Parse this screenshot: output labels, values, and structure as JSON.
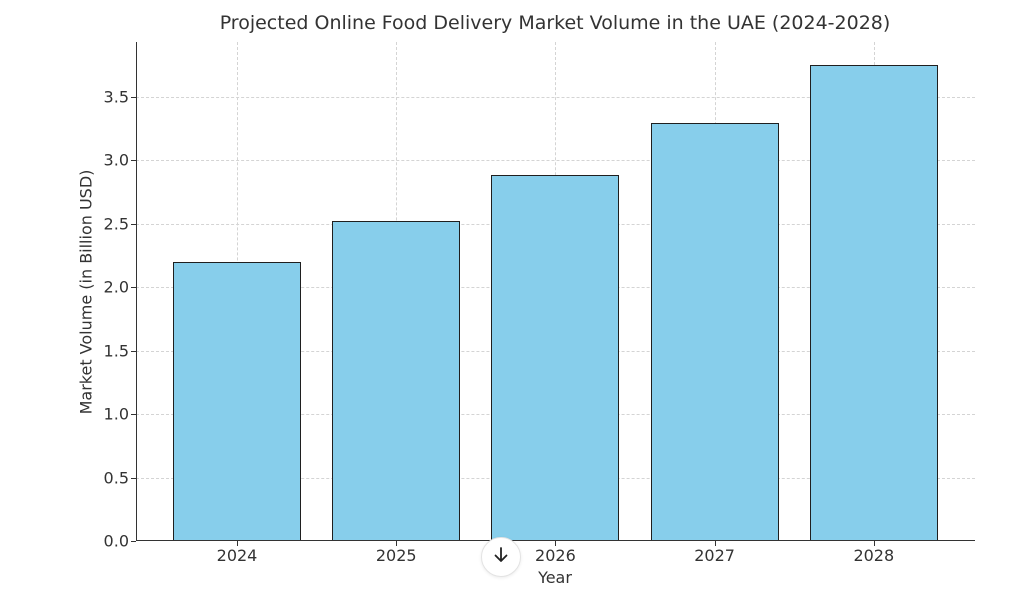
{
  "chart_data": {
    "type": "bar",
    "title": "Projected Online Food Delivery Market Volume in the UAE (2024-2028)",
    "xlabel": "Year",
    "ylabel": "Market Volume (in Billion USD)",
    "categories": [
      "2024",
      "2025",
      "2026",
      "2027",
      "2028"
    ],
    "values": [
      2.2,
      2.52,
      2.88,
      3.29,
      3.75
    ],
    "ylim": [
      0,
      3.93
    ],
    "yticks": [
      "0.0",
      "0.5",
      "1.0",
      "1.5",
      "2.0",
      "2.5",
      "3.0",
      "3.5"
    ],
    "grid": true,
    "bar_color": "#87ceeb",
    "edge_color": "#1f1f1f",
    "legend": null
  },
  "ui": {
    "scroll_down_icon": "arrow-down-icon",
    "scroll_down_glyph": "↓"
  }
}
